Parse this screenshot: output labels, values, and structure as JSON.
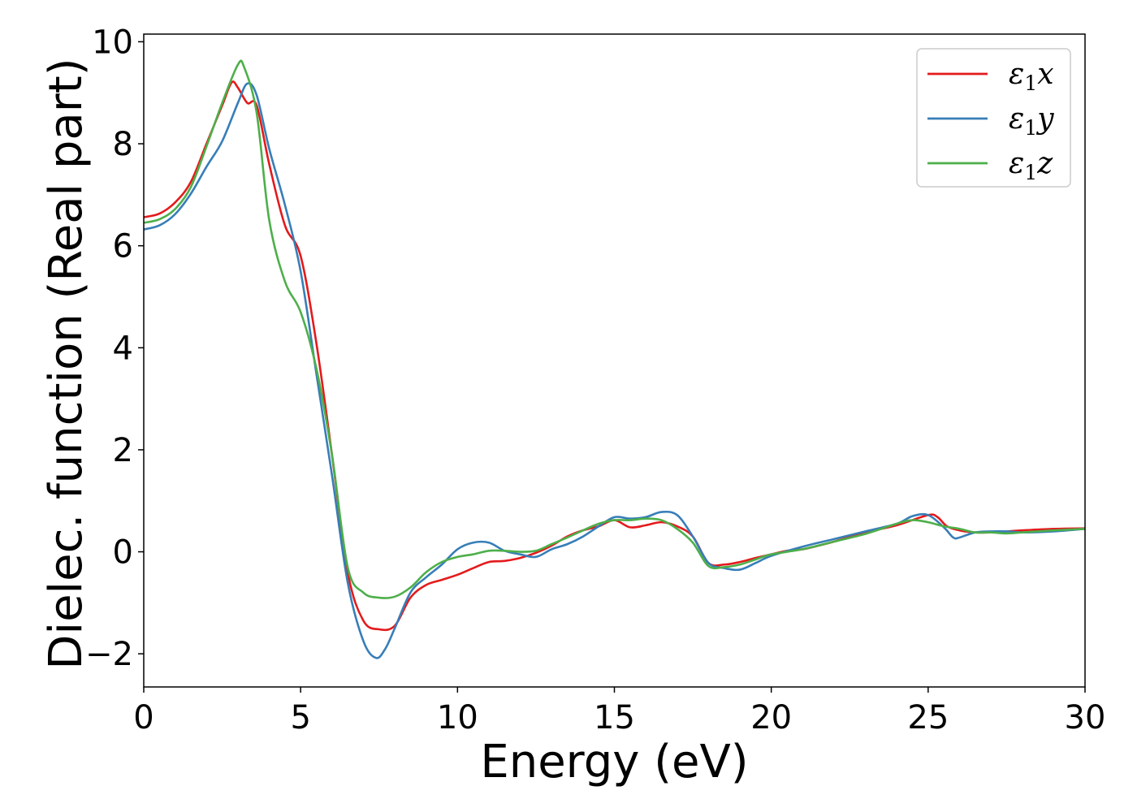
{
  "chart_data": {
    "type": "line",
    "title": "",
    "xlabel": "Energy (eV)",
    "ylabel": "Dielec. function (Real part)",
    "xlim": [
      0,
      30
    ],
    "ylim": [
      -2.65,
      10.15
    ],
    "xticks": [
      0,
      5,
      10,
      15,
      20,
      25,
      30
    ],
    "xtick_labels": [
      "0",
      "5",
      "10",
      "15",
      "20",
      "25",
      "30"
    ],
    "yticks": [
      -2,
      0,
      2,
      4,
      6,
      8,
      10
    ],
    "ytick_labels": [
      "−2",
      "0",
      "2",
      "4",
      "6",
      "8",
      "10"
    ],
    "grid": false,
    "legend": {
      "position": "top-right",
      "entries": [
        {
          "base": "ε",
          "sub": "1",
          "suffix": "x"
        },
        {
          "base": "ε",
          "sub": "1",
          "suffix": "y"
        },
        {
          "base": "ε",
          "sub": "1",
          "suffix": "z"
        }
      ]
    },
    "series": [
      {
        "name": "ε1x",
        "color": "#e41a1c",
        "points": [
          [
            0,
            6.56
          ],
          [
            0.5,
            6.63
          ],
          [
            1.0,
            6.85
          ],
          [
            1.5,
            7.25
          ],
          [
            2.0,
            8.0
          ],
          [
            2.5,
            8.75
          ],
          [
            2.8,
            9.2
          ],
          [
            3.0,
            9.1
          ],
          [
            3.3,
            8.8
          ],
          [
            3.6,
            8.75
          ],
          [
            4.0,
            7.6
          ],
          [
            4.5,
            6.4
          ],
          [
            5.0,
            5.8
          ],
          [
            5.5,
            4.1
          ],
          [
            6.0,
            1.9
          ],
          [
            6.5,
            -0.4
          ],
          [
            7.0,
            -1.35
          ],
          [
            7.5,
            -1.52
          ],
          [
            8.0,
            -1.45
          ],
          [
            8.5,
            -0.9
          ],
          [
            9.0,
            -0.65
          ],
          [
            9.5,
            -0.55
          ],
          [
            10.0,
            -0.45
          ],
          [
            10.5,
            -0.32
          ],
          [
            11.0,
            -0.2
          ],
          [
            11.5,
            -0.18
          ],
          [
            12.0,
            -0.12
          ],
          [
            12.5,
            -0.02
          ],
          [
            13.0,
            0.12
          ],
          [
            13.5,
            0.3
          ],
          [
            14.0,
            0.42
          ],
          [
            14.5,
            0.5
          ],
          [
            15.0,
            0.62
          ],
          [
            15.5,
            0.48
          ],
          [
            16.0,
            0.52
          ],
          [
            16.5,
            0.58
          ],
          [
            17.0,
            0.5
          ],
          [
            17.5,
            0.3
          ],
          [
            18.0,
            -0.22
          ],
          [
            18.5,
            -0.25
          ],
          [
            19.0,
            -0.2
          ],
          [
            19.5,
            -0.12
          ],
          [
            20.0,
            -0.05
          ],
          [
            20.5,
            0.02
          ],
          [
            21.0,
            0.05
          ],
          [
            21.5,
            0.12
          ],
          [
            22.0,
            0.2
          ],
          [
            23.0,
            0.38
          ],
          [
            24.0,
            0.52
          ],
          [
            25.0,
            0.72
          ],
          [
            25.3,
            0.68
          ],
          [
            25.6,
            0.5
          ],
          [
            26.0,
            0.42
          ],
          [
            26.5,
            0.38
          ],
          [
            27.0,
            0.38
          ],
          [
            27.5,
            0.4
          ],
          [
            28.0,
            0.42
          ],
          [
            29.0,
            0.45
          ],
          [
            30.0,
            0.46
          ]
        ]
      },
      {
        "name": "ε1y",
        "color": "#377eb8",
        "points": [
          [
            0,
            6.32
          ],
          [
            0.5,
            6.4
          ],
          [
            1.0,
            6.62
          ],
          [
            1.5,
            7.02
          ],
          [
            2.0,
            7.55
          ],
          [
            2.5,
            8.05
          ],
          [
            3.0,
            8.8
          ],
          [
            3.3,
            9.18
          ],
          [
            3.6,
            8.95
          ],
          [
            4.0,
            7.9
          ],
          [
            4.5,
            6.8
          ],
          [
            5.0,
            5.5
          ],
          [
            5.5,
            3.5
          ],
          [
            6.0,
            1.5
          ],
          [
            6.5,
            -0.6
          ],
          [
            7.0,
            -1.75
          ],
          [
            7.4,
            -2.08
          ],
          [
            7.7,
            -1.9
          ],
          [
            8.0,
            -1.5
          ],
          [
            8.5,
            -0.8
          ],
          [
            9.0,
            -0.5
          ],
          [
            9.5,
            -0.25
          ],
          [
            10.0,
            0.05
          ],
          [
            10.5,
            0.18
          ],
          [
            11.0,
            0.18
          ],
          [
            11.5,
            0.02
          ],
          [
            12.0,
            -0.05
          ],
          [
            12.5,
            -0.1
          ],
          [
            13.0,
            0.05
          ],
          [
            13.5,
            0.15
          ],
          [
            14.0,
            0.3
          ],
          [
            14.5,
            0.5
          ],
          [
            15.0,
            0.68
          ],
          [
            15.5,
            0.65
          ],
          [
            16.0,
            0.68
          ],
          [
            16.5,
            0.78
          ],
          [
            17.0,
            0.72
          ],
          [
            17.5,
            0.3
          ],
          [
            18.0,
            -0.22
          ],
          [
            18.5,
            -0.32
          ],
          [
            19.0,
            -0.35
          ],
          [
            19.5,
            -0.22
          ],
          [
            20.0,
            -0.08
          ],
          [
            21.0,
            0.1
          ],
          [
            22.0,
            0.25
          ],
          [
            23.0,
            0.4
          ],
          [
            24.0,
            0.55
          ],
          [
            24.5,
            0.7
          ],
          [
            25.0,
            0.72
          ],
          [
            25.5,
            0.48
          ],
          [
            25.8,
            0.28
          ],
          [
            26.0,
            0.28
          ],
          [
            26.5,
            0.38
          ],
          [
            27.0,
            0.4
          ],
          [
            27.5,
            0.4
          ],
          [
            28.0,
            0.38
          ],
          [
            29.0,
            0.4
          ],
          [
            30.0,
            0.45
          ]
        ]
      },
      {
        "name": "ε1z",
        "color": "#4daf4a",
        "points": [
          [
            0,
            6.45
          ],
          [
            0.5,
            6.52
          ],
          [
            1.0,
            6.72
          ],
          [
            1.5,
            7.15
          ],
          [
            2.0,
            7.95
          ],
          [
            2.5,
            8.8
          ],
          [
            3.0,
            9.55
          ],
          [
            3.2,
            9.5
          ],
          [
            3.6,
            8.6
          ],
          [
            4.0,
            6.5
          ],
          [
            4.5,
            5.3
          ],
          [
            5.0,
            4.7
          ],
          [
            5.5,
            3.6
          ],
          [
            6.0,
            1.9
          ],
          [
            6.5,
            -0.3
          ],
          [
            7.0,
            -0.8
          ],
          [
            7.5,
            -0.9
          ],
          [
            8.0,
            -0.88
          ],
          [
            8.5,
            -0.7
          ],
          [
            9.0,
            -0.4
          ],
          [
            9.5,
            -0.2
          ],
          [
            10.0,
            -0.1
          ],
          [
            10.5,
            -0.05
          ],
          [
            11.0,
            0.02
          ],
          [
            11.5,
            0.02
          ],
          [
            12.0,
            0.0
          ],
          [
            12.5,
            0.02
          ],
          [
            13.0,
            0.15
          ],
          [
            13.5,
            0.28
          ],
          [
            14.0,
            0.42
          ],
          [
            14.5,
            0.55
          ],
          [
            15.0,
            0.62
          ],
          [
            15.5,
            0.62
          ],
          [
            16.0,
            0.65
          ],
          [
            16.5,
            0.62
          ],
          [
            17.0,
            0.45
          ],
          [
            17.5,
            0.18
          ],
          [
            18.0,
            -0.28
          ],
          [
            18.5,
            -0.3
          ],
          [
            19.0,
            -0.25
          ],
          [
            19.5,
            -0.15
          ],
          [
            20.0,
            -0.05
          ],
          [
            21.0,
            0.05
          ],
          [
            22.0,
            0.2
          ],
          [
            23.0,
            0.35
          ],
          [
            24.0,
            0.55
          ],
          [
            24.5,
            0.62
          ],
          [
            25.0,
            0.58
          ],
          [
            25.5,
            0.5
          ],
          [
            26.0,
            0.45
          ],
          [
            26.5,
            0.38
          ],
          [
            27.0,
            0.38
          ],
          [
            27.5,
            0.36
          ],
          [
            28.0,
            0.38
          ],
          [
            29.0,
            0.42
          ],
          [
            30.0,
            0.45
          ]
        ]
      }
    ]
  }
}
